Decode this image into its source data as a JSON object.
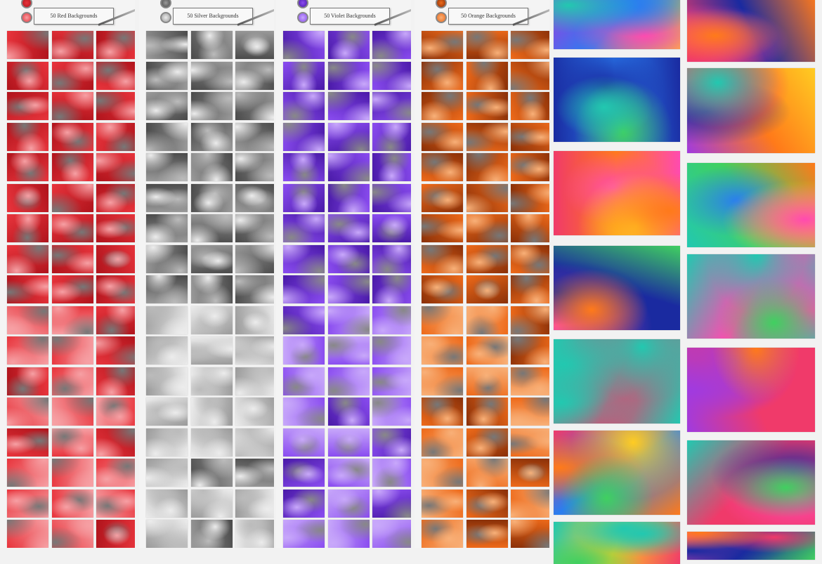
{
  "panels": [
    {
      "label": "50 Red Backgrounds"
    },
    {
      "label": "50 Silver Backgrounds"
    },
    {
      "label": "50 Violet Backgrounds"
    },
    {
      "label": "50 Orange Backgrounds"
    }
  ]
}
